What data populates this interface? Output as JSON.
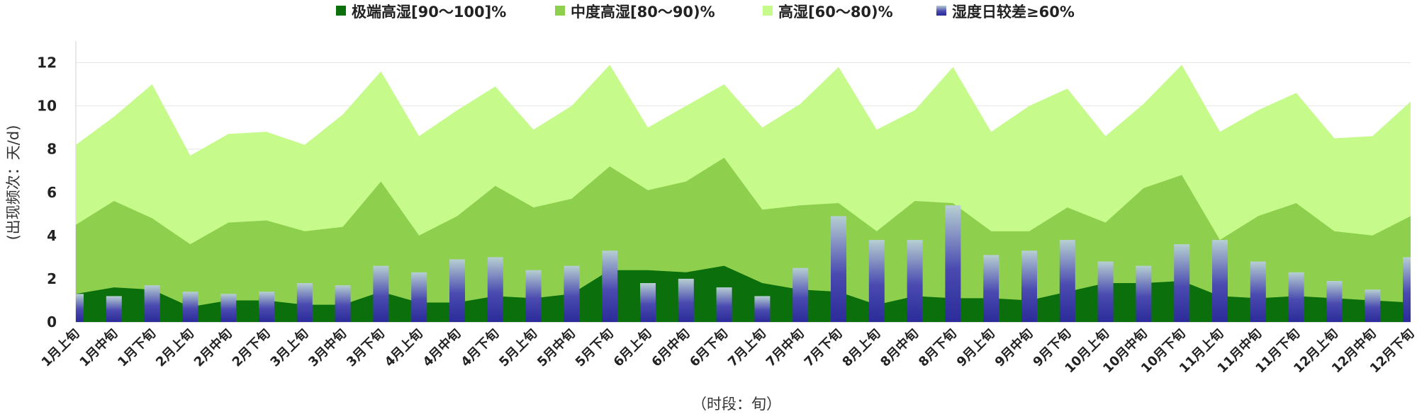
{
  "colors": {
    "extreme": "#0b6f0b",
    "moderate": "#8ed04e",
    "high": "#c6fb8c",
    "bar_top": "#b6cfd2",
    "bar_mid": "#4a4ab0",
    "bar_bottom": "#2b2b9a",
    "grid": "#e6e6e6"
  },
  "legend_icons": [
    "square-icon",
    "square-icon",
    "square-icon",
    "gradient-square-icon"
  ],
  "chart_data": {
    "type": "area",
    "xlabel": "（时段：旬）",
    "ylabel": "(出现频次：天/d)",
    "ylim": [
      0,
      13
    ],
    "yticks": [
      0,
      2,
      4,
      6,
      8,
      10,
      12
    ],
    "grid": true,
    "legend_position": "top-center",
    "categories": [
      "1月上旬",
      "1月中旬",
      "1月下旬",
      "2月上旬",
      "2月中旬",
      "2月下旬",
      "3月上旬",
      "3月中旬",
      "3月下旬",
      "4月上旬",
      "4月中旬",
      "4月下旬",
      "5月上旬",
      "5月中旬",
      "5月下旬",
      "6月上旬",
      "6月中旬",
      "6月下旬",
      "7月上旬",
      "7月中旬",
      "7月下旬",
      "8月上旬",
      "8月中旬",
      "8月下旬",
      "9月上旬",
      "9月中旬",
      "9月下旬",
      "10月上旬",
      "10月中旬",
      "10月下旬",
      "11月上旬",
      "11月中旬",
      "11月下旬",
      "12月上旬",
      "12月中旬",
      "12月下旬"
    ],
    "series": [
      {
        "name": "极端高湿[90～100]%",
        "type": "area",
        "values": [
          1.3,
          1.6,
          1.5,
          0.7,
          1.0,
          1.0,
          0.8,
          0.8,
          1.4,
          0.9,
          0.9,
          1.2,
          1.1,
          1.3,
          2.4,
          2.4,
          2.3,
          2.6,
          1.8,
          1.5,
          1.4,
          0.8,
          1.2,
          1.1,
          1.1,
          1.0,
          1.4,
          1.8,
          1.8,
          1.9,
          1.2,
          1.1,
          1.2,
          1.1,
          1.0,
          0.9
        ]
      },
      {
        "name": "中度高湿[80～90)%",
        "type": "area",
        "values": [
          4.5,
          5.6,
          4.8,
          3.6,
          4.6,
          4.7,
          4.2,
          4.4,
          6.5,
          4.0,
          4.9,
          6.3,
          5.3,
          5.7,
          7.2,
          6.1,
          6.5,
          7.6,
          5.2,
          5.4,
          5.5,
          4.2,
          5.6,
          5.5,
          4.2,
          4.2,
          5.3,
          4.6,
          6.2,
          6.8,
          3.8,
          4.9,
          5.5,
          4.2,
          4.0,
          4.9
        ]
      },
      {
        "name": "高湿[60～80)%",
        "type": "area",
        "values": [
          8.2,
          9.5,
          11.0,
          7.7,
          8.7,
          8.8,
          8.2,
          9.6,
          11.6,
          8.6,
          9.8,
          10.9,
          8.9,
          10.0,
          11.9,
          9.0,
          10.0,
          11.0,
          9.0,
          10.1,
          11.8,
          8.9,
          9.8,
          11.8,
          8.8,
          10.0,
          10.8,
          8.6,
          10.1,
          11.9,
          8.8,
          9.8,
          10.6,
          8.5,
          8.6,
          10.2
        ]
      },
      {
        "name": "湿度日较差≥60%",
        "type": "bar",
        "values": [
          1.3,
          1.2,
          1.7,
          1.4,
          1.3,
          1.4,
          1.8,
          1.7,
          2.6,
          2.3,
          2.9,
          3.0,
          2.4,
          2.6,
          3.3,
          1.8,
          2.0,
          1.6,
          1.2,
          2.5,
          4.9,
          3.8,
          3.8,
          5.4,
          3.1,
          3.3,
          3.8,
          2.8,
          2.6,
          3.6,
          3.8,
          2.8,
          2.3,
          1.9,
          1.5,
          3.0
        ]
      }
    ]
  }
}
